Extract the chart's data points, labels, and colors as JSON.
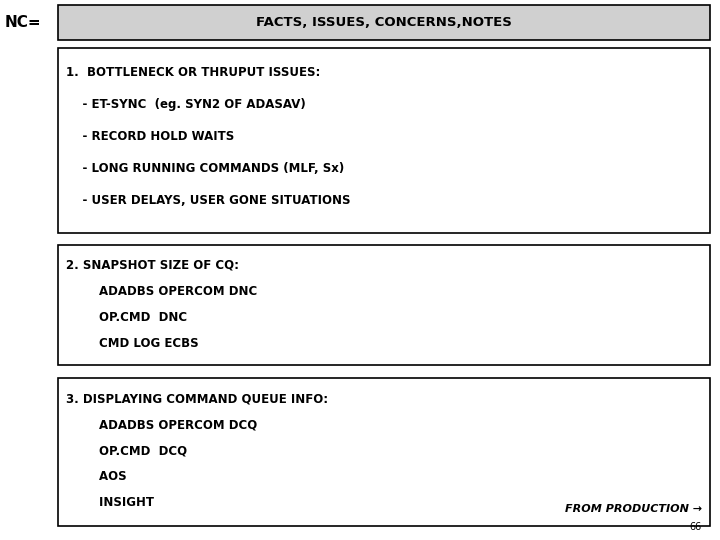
{
  "title": "FACTS, ISSUES, CONCERNS,NOTES",
  "nc_label": "NC=",
  "bg_color": "#ffffff",
  "header_bg": "#d0d0d0",
  "box1_lines": [
    "1.  BOTTLENECK OR THRUPUT ISSUES:",
    "    - ET-SYNC  (eg. SYN2 OF ADASAV)",
    "    - RECORD HOLD WAITS",
    "    - LONG RUNNING COMMANDS (MLF, Sx)",
    "    - USER DELAYS, USER GONE SITUATIONS"
  ],
  "box2_lines": [
    "2. SNAPSHOT SIZE OF CQ:",
    "        ADADBS OPERCOM DNC",
    "        OP.CMD  DNC",
    "        CMD LOG ECBS"
  ],
  "box3_lines": [
    "3. DISPLAYING COMMAND QUEUE INFO:",
    "        ADADBS OPERCOM DCQ",
    "        OP.CMD  DCQ",
    "        AOS",
    "        INSIGHT"
  ],
  "from_production": "FROM PRODUCTION →",
  "page_number": "66",
  "font_size_title": 9.5,
  "font_size_nc": 11,
  "font_size_body": 8.5,
  "font_size_from_prod": 8,
  "font_size_page": 7
}
